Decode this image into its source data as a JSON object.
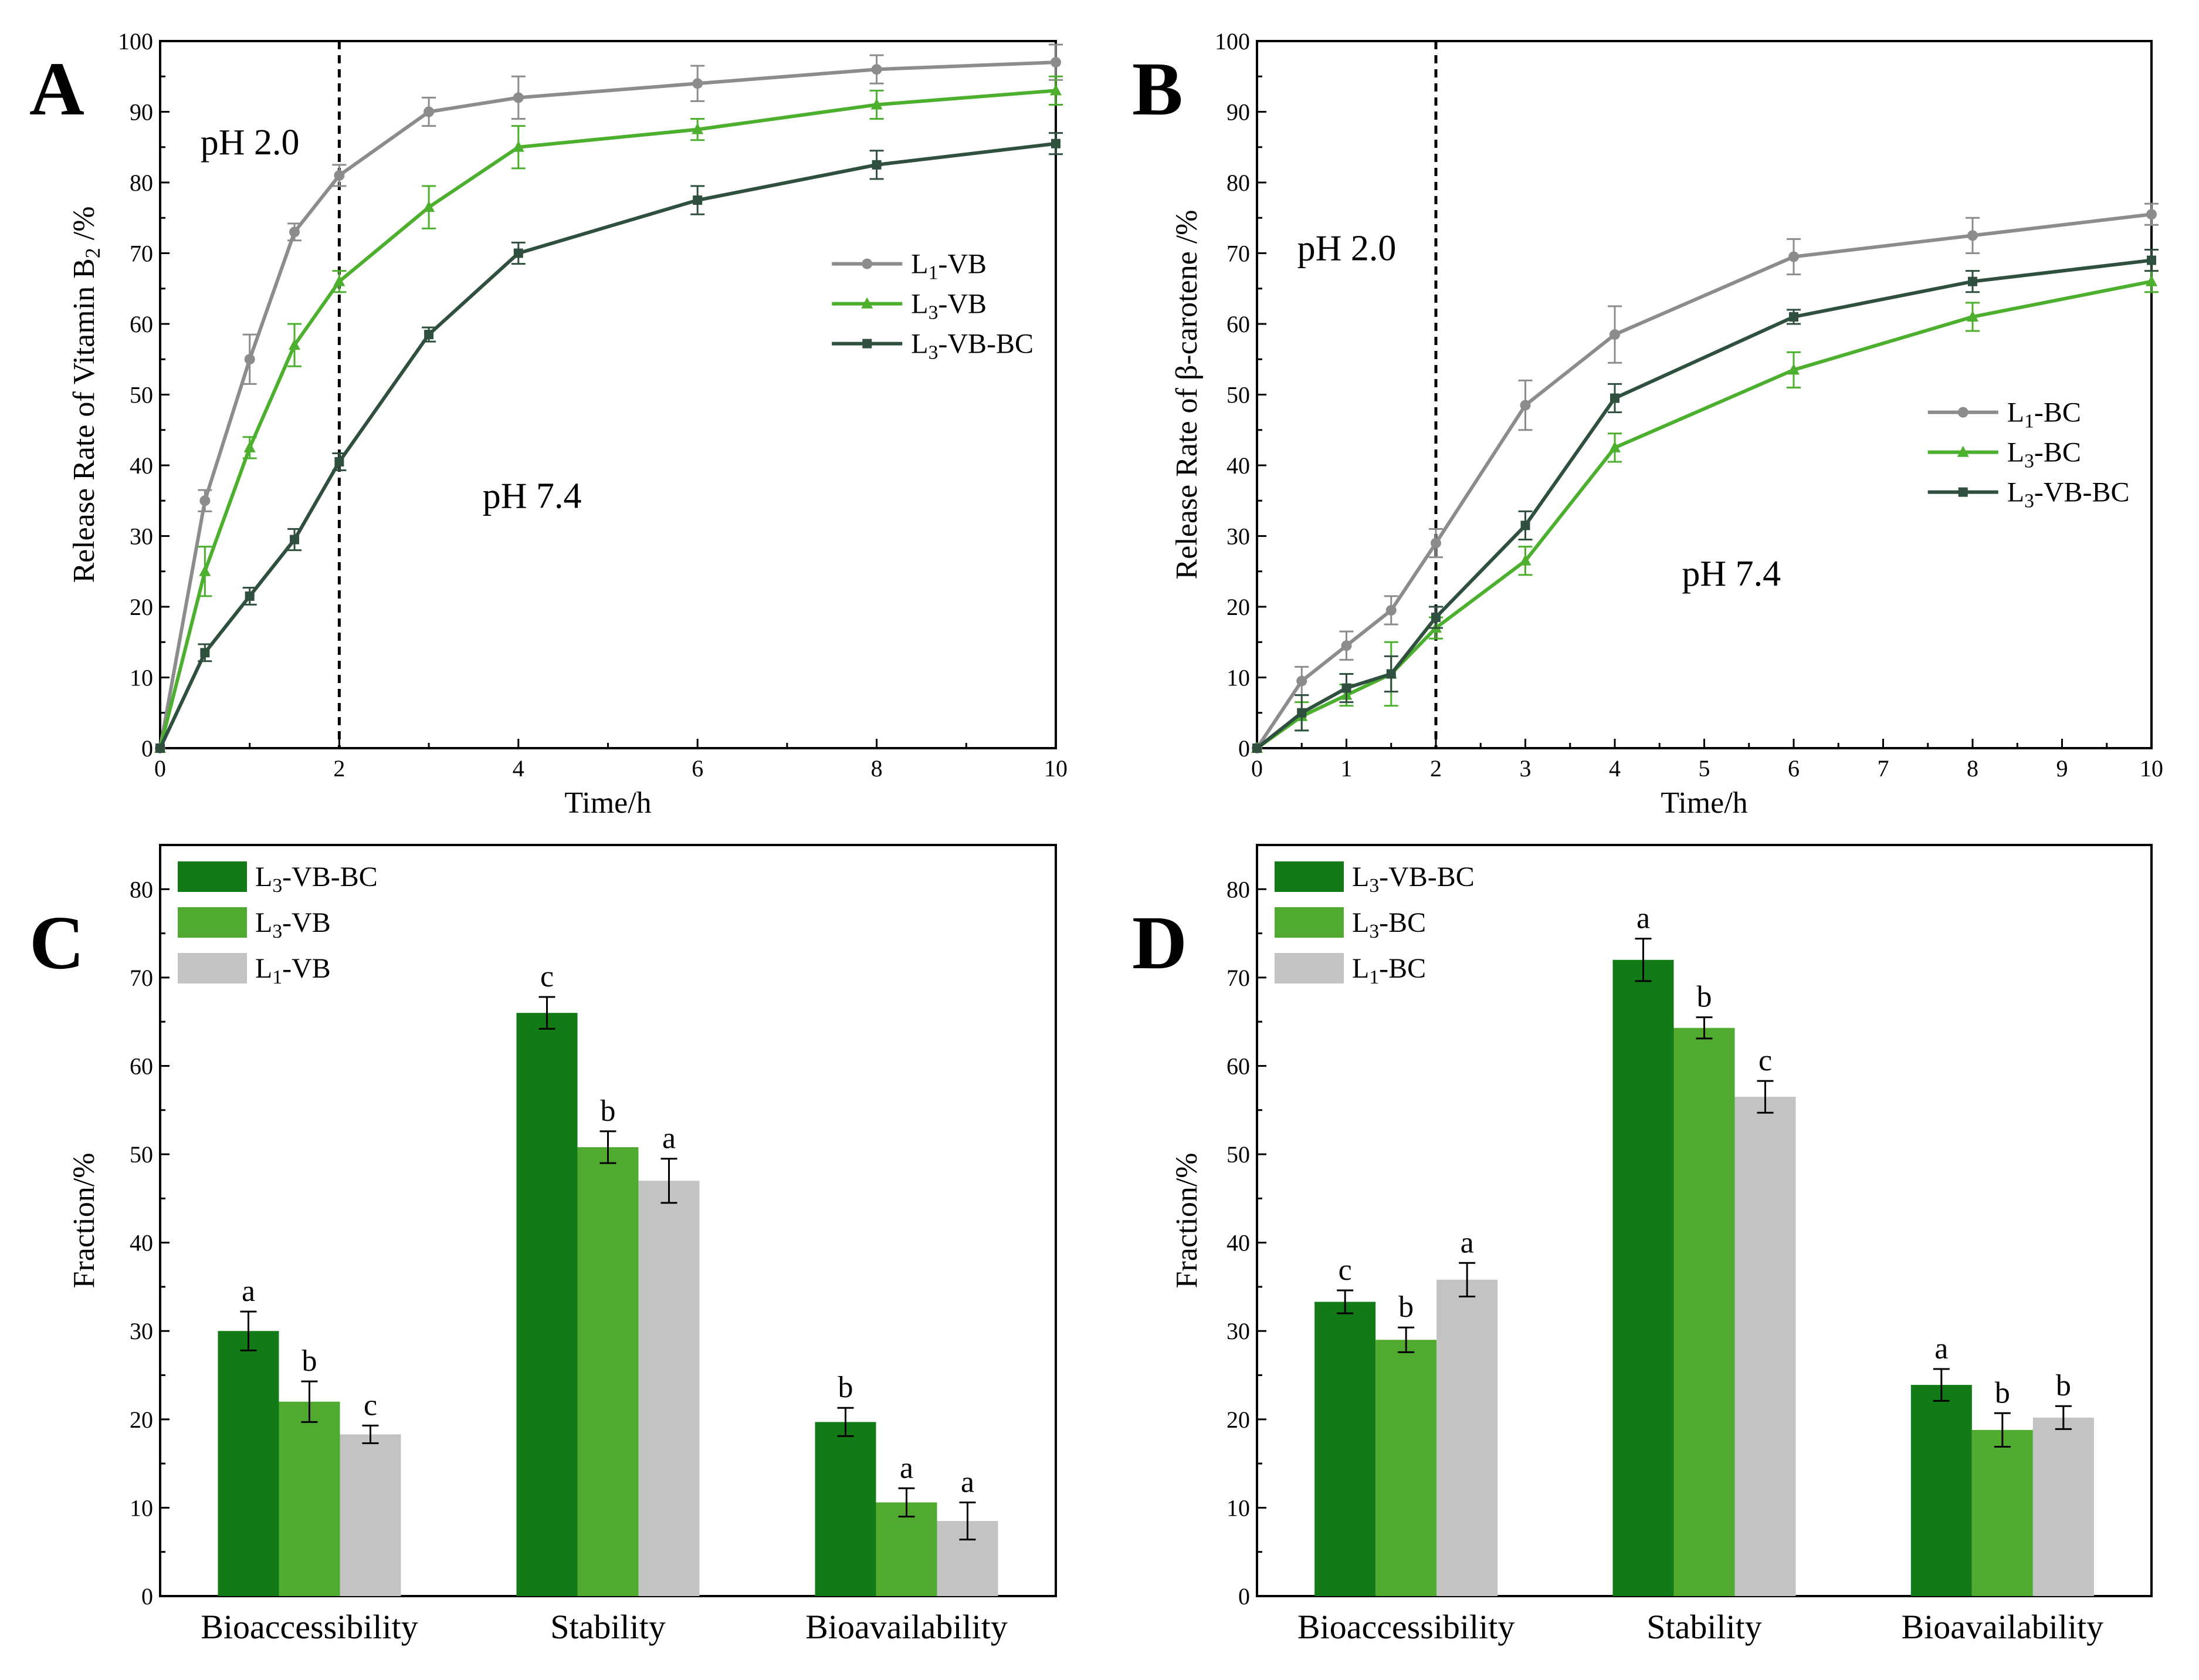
{
  "colors": {
    "gray": "#8c8c8c",
    "green": "#4caf2e",
    "darkgreen": "#2f4f3f",
    "barDark": "#127a16",
    "barMid": "#4faa2f",
    "barLight": "#c3c3c3"
  },
  "chart_data": [
    {
      "panel": "A",
      "type": "line",
      "xlabel": "Time/h",
      "ylabel": "Release Rate of Vitamin B",
      "ylabel_sub": "2",
      "ylabel_tail": " /%",
      "xlim": [
        0,
        10
      ],
      "ylim": [
        0,
        100
      ],
      "xticks": [
        0,
        2,
        4,
        6,
        8,
        10
      ],
      "yticks": [
        0,
        10,
        20,
        30,
        40,
        50,
        60,
        70,
        80,
        90,
        100
      ],
      "vline_x": 2,
      "legend_position": "right-middle",
      "annotations": [
        {
          "text": "pH 2.0",
          "at_x": 0.45,
          "at_y": 84
        },
        {
          "text": "pH 7.4",
          "at_x": 3.6,
          "at_y": 34
        }
      ],
      "series": [
        {
          "name": "L1-VB",
          "label_main": "L",
          "label_sub": "1",
          "label_tail": "-VB",
          "color_key": "gray",
          "marker": "circle",
          "x": [
            0,
            0.5,
            1,
            1.5,
            2,
            3,
            4,
            6,
            8,
            10
          ],
          "y": [
            0,
            35,
            55,
            73,
            81,
            90,
            92,
            94,
            96,
            97
          ],
          "err": [
            0,
            1.5,
            3.5,
            1.2,
            1.5,
            2,
            3,
            2.5,
            2,
            2.5
          ]
        },
        {
          "name": "L3-VB",
          "label_main": "L",
          "label_sub": "3",
          "label_tail": "-VB",
          "color_key": "green",
          "marker": "triangle",
          "x": [
            0,
            0.5,
            1,
            1.5,
            2,
            3,
            4,
            6,
            8,
            10
          ],
          "y": [
            0,
            25,
            42.5,
            57,
            66,
            76.5,
            85,
            87.5,
            91,
            93
          ],
          "err": [
            0,
            3.5,
            1.5,
            3,
            1.5,
            3,
            3,
            1.5,
            2,
            2
          ]
        },
        {
          "name": "L3-VB-BC",
          "label_main": "L",
          "label_sub": "3",
          "label_tail": "-VB-BC",
          "color_key": "darkgreen",
          "marker": "square",
          "x": [
            0,
            0.5,
            1,
            1.5,
            2,
            3,
            4,
            6,
            8,
            10
          ],
          "y": [
            0,
            13.5,
            21.5,
            29.5,
            40.5,
            58.5,
            70,
            77.5,
            82.5,
            85.5
          ],
          "err": [
            0,
            1.2,
            1.2,
            1.5,
            1.2,
            1,
            1.5,
            2,
            2,
            1.5
          ]
        }
      ]
    },
    {
      "panel": "B",
      "type": "line",
      "xlabel": "Time/h",
      "ylabel": "Release Rate of β-carotene /%",
      "xlim": [
        0,
        10
      ],
      "ylim": [
        0,
        100
      ],
      "xticks": [
        0,
        1,
        2,
        3,
        4,
        5,
        6,
        7,
        8,
        9,
        10
      ],
      "yticks": [
        0,
        10,
        20,
        30,
        40,
        50,
        60,
        70,
        80,
        90,
        100
      ],
      "vline_x": 2,
      "legend_position": "right-middle",
      "annotations": [
        {
          "text": "pH 2.0",
          "at_x": 0.45,
          "at_y": 69
        },
        {
          "text": "pH 7.4",
          "at_x": 4.75,
          "at_y": 23
        }
      ],
      "series": [
        {
          "name": "L1-BC",
          "label_main": "L",
          "label_sub": "1",
          "label_tail": "-BC",
          "color_key": "gray",
          "marker": "circle",
          "x": [
            0,
            0.5,
            1,
            1.5,
            2,
            3,
            4,
            6,
            8,
            10
          ],
          "y": [
            0,
            9.5,
            14.5,
            19.5,
            29,
            48.5,
            58.5,
            69.5,
            72.5,
            75.5
          ],
          "err": [
            0,
            2,
            2,
            2,
            2,
            3.5,
            4,
            2.5,
            2.5,
            1.5
          ]
        },
        {
          "name": "L3-BC",
          "label_main": "L",
          "label_sub": "3",
          "label_tail": "-BC",
          "color_key": "green",
          "marker": "triangle",
          "x": [
            0,
            0.5,
            1,
            1.5,
            2,
            3,
            4,
            6,
            8,
            10
          ],
          "y": [
            0,
            4.5,
            7.5,
            10.5,
            17,
            26.5,
            42.5,
            53.5,
            61,
            66
          ],
          "err": [
            0,
            2,
            1.5,
            4.5,
            1.5,
            2,
            2,
            2.5,
            2,
            1.5
          ]
        },
        {
          "name": "L3-VB-BC",
          "label_main": "L",
          "label_sub": "3",
          "label_tail": "-VB-BC",
          "color_key": "darkgreen",
          "marker": "square",
          "x": [
            0,
            0.5,
            1,
            1.5,
            2,
            3,
            4,
            6,
            8,
            10
          ],
          "y": [
            0,
            5,
            8.5,
            10.5,
            18.5,
            31.5,
            49.5,
            61,
            66,
            69
          ],
          "err": [
            0,
            2.5,
            2,
            2.5,
            1.5,
            2,
            2,
            1,
            1.5,
            1.5
          ]
        }
      ]
    },
    {
      "panel": "C",
      "type": "bar",
      "ylabel": "Fraction/%",
      "ylim": [
        0,
        85
      ],
      "yticks": [
        0,
        10,
        20,
        30,
        40,
        50,
        60,
        70,
        80
      ],
      "categories": [
        "Bioaccessibility",
        "Stability",
        "Bioavailability"
      ],
      "legend_position": "top-left",
      "series": [
        {
          "name": "L3-VB-BC",
          "label_main": "L",
          "label_sub": "3",
          "label_tail": "-VB-BC",
          "color_key": "barDark",
          "values": [
            30,
            66,
            19.7
          ],
          "err": [
            2.2,
            1.8,
            1.6
          ],
          "letters": [
            "a",
            "c",
            "b"
          ]
        },
        {
          "name": "L3-VB",
          "label_main": "L",
          "label_sub": "3",
          "label_tail": "-VB",
          "color_key": "barMid",
          "values": [
            22,
            50.8,
            10.6
          ],
          "err": [
            2.3,
            1.8,
            1.6
          ],
          "letters": [
            "b",
            "b",
            "a"
          ]
        },
        {
          "name": "L1-VB",
          "label_main": "L",
          "label_sub": "1",
          "label_tail": "-VB",
          "color_key": "barLight",
          "values": [
            18.3,
            47,
            8.5
          ],
          "err": [
            1,
            2.5,
            2.1
          ],
          "letters": [
            "c",
            "a",
            "a"
          ]
        }
      ]
    },
    {
      "panel": "D",
      "type": "bar",
      "ylabel": "Fraction/%",
      "ylim": [
        0,
        85
      ],
      "yticks": [
        0,
        10,
        20,
        30,
        40,
        50,
        60,
        70,
        80
      ],
      "categories": [
        "Bioaccessibility",
        "Stability",
        "Bioavailability"
      ],
      "legend_position": "top-left",
      "series": [
        {
          "name": "L3-VB-BC",
          "label_main": "L",
          "label_sub": "3",
          "label_tail": "-VB-BC",
          "color_key": "barDark",
          "values": [
            33.3,
            72,
            23.9
          ],
          "err": [
            1.3,
            2.4,
            1.8
          ],
          "letters": [
            "c",
            "a",
            "a"
          ]
        },
        {
          "name": "L3-BC",
          "label_main": "L",
          "label_sub": "3",
          "label_tail": "-BC",
          "color_key": "barMid",
          "values": [
            29,
            64.3,
            18.8
          ],
          "err": [
            1.4,
            1.2,
            1.9
          ],
          "letters": [
            "b",
            "b",
            "b"
          ]
        },
        {
          "name": "L1-BC",
          "label_main": "L",
          "label_sub": "1",
          "label_tail": "-BC",
          "color_key": "barLight",
          "values": [
            35.8,
            56.5,
            20.2
          ],
          "err": [
            1.9,
            1.8,
            1.3
          ],
          "letters": [
            "a",
            "c",
            "b"
          ]
        }
      ]
    }
  ]
}
